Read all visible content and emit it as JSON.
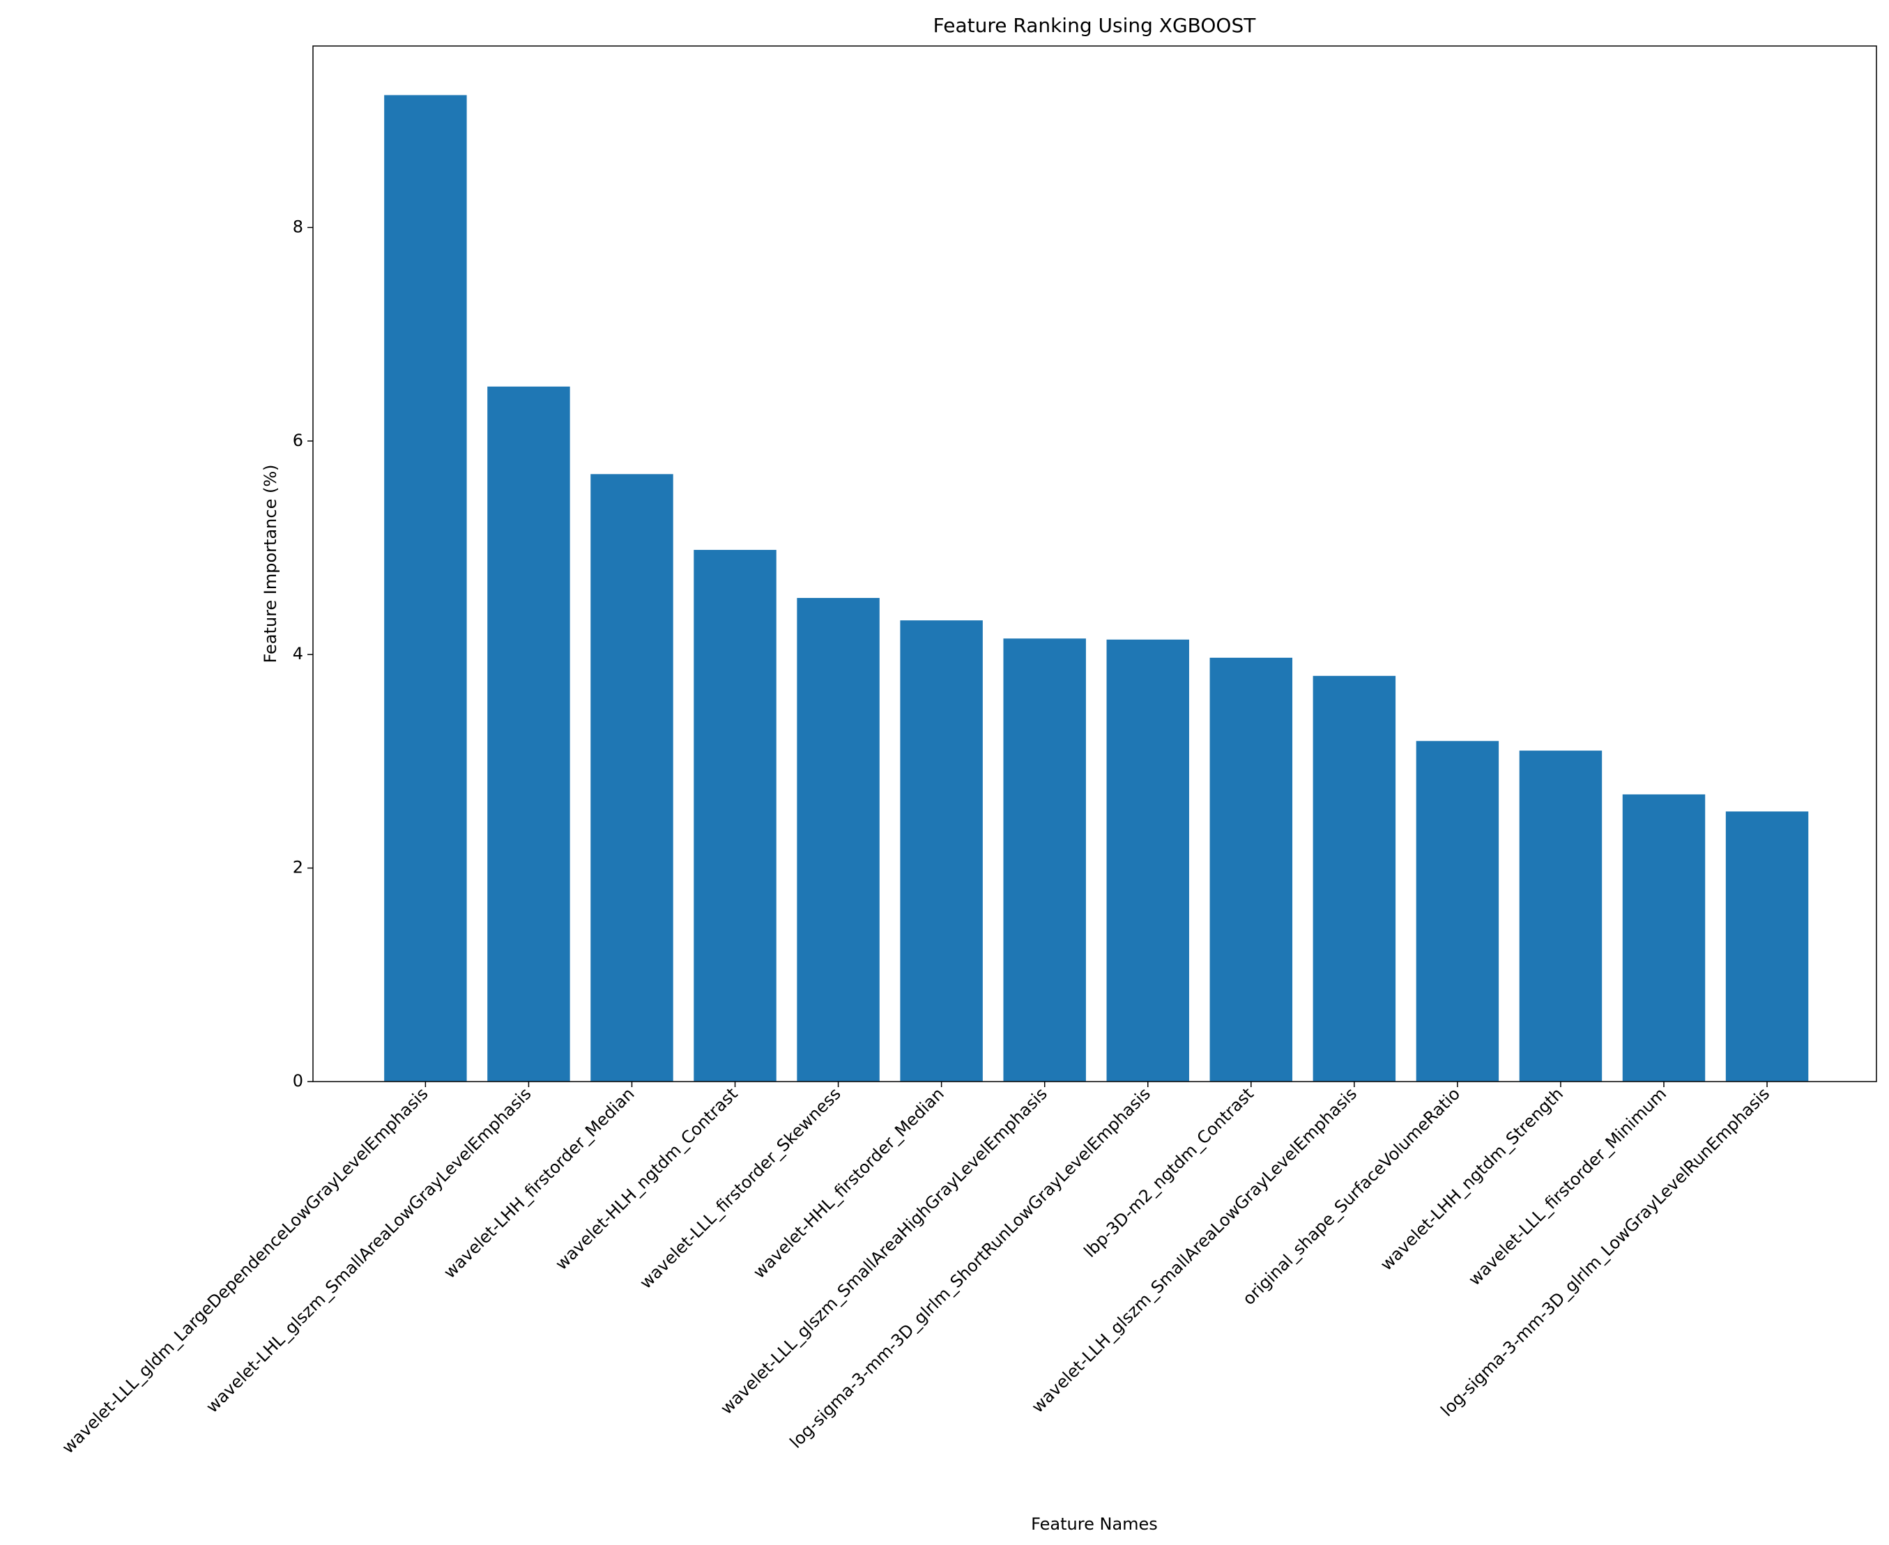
{
  "chart_data": {
    "type": "bar",
    "title": "Feature Ranking Using XGBOOST",
    "x_label": "Feature Names",
    "y_label": "Feature Importance (%)",
    "categories": [
      "wavelet-LLL_gldm_LargeDependenceLowGrayLevelEmphasis",
      "wavelet-LHL_glszm_SmallAreaLowGrayLevelEmphasis",
      "wavelet-LHH_firstorder_Median",
      "wavelet-HLH_ngtdm_Contrast",
      "wavelet-LLL_firstorder_Skewness",
      "wavelet-HHL_firstorder_Median",
      "wavelet-LLL_glszm_SmallAreaHighGrayLevelEmphasis",
      "log-sigma-3-mm-3D_glrlm_ShortRunLowGrayLevelEmphasis",
      "lbp-3D-m2_ngtdm_Contrast",
      "wavelet-LLH_glszm_SmallAreaLowGrayLevelEmphasis",
      "original_shape_SurfaceVolumeRatio",
      "wavelet-LHH_ngtdm_Strength",
      "wavelet-LLL_firstorder_Minimum",
      "log-sigma-3-mm-3D_glrlm_LowGrayLevelRunEmphasis"
    ],
    "values": [
      9.24,
      6.51,
      5.69,
      4.98,
      4.53,
      4.32,
      4.15,
      4.14,
      3.97,
      3.8,
      3.19,
      3.1,
      2.69,
      2.53
    ],
    "color": "#1f77b4",
    "ylim": [
      0,
      9.7
    ],
    "yticks": [
      0,
      2,
      4,
      6,
      8
    ],
    "grid": false
  }
}
